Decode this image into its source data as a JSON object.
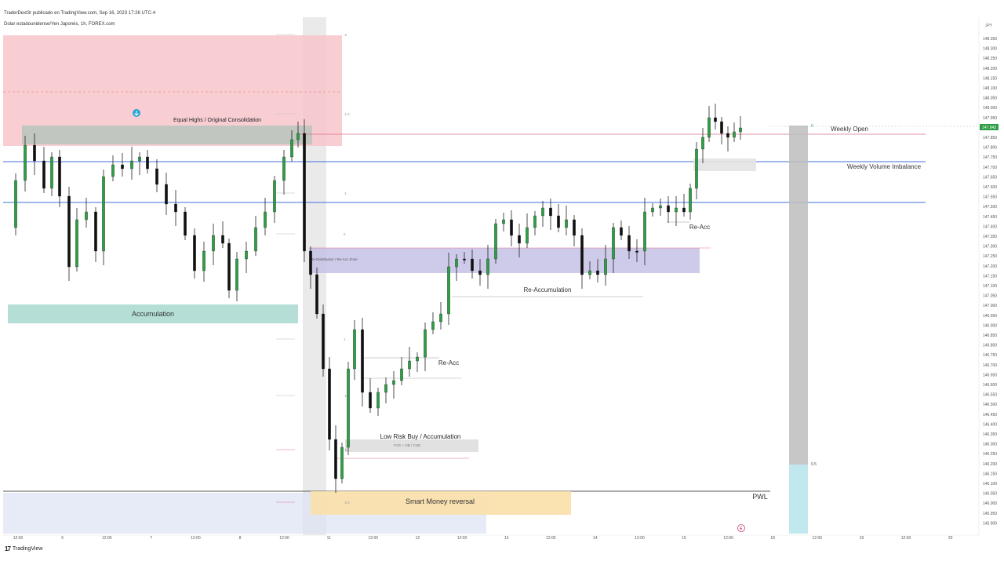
{
  "header": {
    "published": "TraderDext3r publicado en TradingView.com, Sep 16, 2023 17:26 UTC-4",
    "symbol": "Dolar estadounidense/Yen Japonés, 1h, FOREX.com"
  },
  "price_axis": {
    "currency": "JPY",
    "ticks": [
      "148.350",
      "148.300",
      "148.250",
      "148.200",
      "148.150",
      "148.100",
      "148.050",
      "148.000",
      "147.950",
      "147.900",
      "147.850",
      "147.800",
      "147.750",
      "147.700",
      "147.650",
      "147.600",
      "147.550",
      "147.500",
      "147.450",
      "147.400",
      "147.350",
      "147.300",
      "147.250",
      "147.200",
      "147.150",
      "147.100",
      "147.050",
      "147.000",
      "146.950",
      "146.900",
      "146.850",
      "146.800",
      "146.750",
      "146.700",
      "146.650",
      "146.600",
      "146.550",
      "146.500",
      "146.450",
      "146.400",
      "146.350",
      "146.300",
      "146.250",
      "146.200",
      "146.150",
      "146.100",
      "146.050",
      "146.000",
      "145.950",
      "145.900"
    ],
    "current_price": "147.843"
  },
  "time_axis": {
    "ticks": [
      "12:00",
      "6",
      "12:00",
      "7",
      "12:00",
      "8",
      "12:00",
      "11",
      "12:00",
      "12",
      "12:00",
      "13",
      "12:00",
      "14",
      "12:00",
      "15",
      "12:00",
      "18",
      "12:00",
      "19",
      "12:00",
      "20"
    ]
  },
  "zones": {
    "premium": "",
    "equal_highs": "Equal Highs / Original Consolidation",
    "accumulation": "Accumulation",
    "redistribution": "Re-Distribution / Re-Acc Zone",
    "re_accumulation": "Re-Accumulation",
    "re_acc_1": "Re-Acc",
    "re_acc_2": "Re-Acc",
    "low_risk": "Low Risk Buy / Accumulation",
    "low_risk_sub": "FVG + OB / CSD",
    "smart_money": "Smart Money reversal",
    "weekly_open": "Weekly Open",
    "weekly_volume": "Weekly Volume Imbalance",
    "pwl": "PWL"
  },
  "fib_levels": [
    "-2",
    "-1.5",
    "-1",
    "0",
    "1",
    "-1.5",
    "-2",
    "-2.5"
  ],
  "fib_right": [
    "0",
    "0.5"
  ],
  "colors": {
    "bull": "#2e9e44",
    "bear": "#111111",
    "premium_zone": "#f8c6cb",
    "equal_highs_zone": "#b8c4bd",
    "accumulation_zone": "#a8d9cf",
    "redistribution_zone": "#c6c1e6",
    "smart_money_zone": "#fbe0a8",
    "blue_line": "#3f6fd9",
    "pink_line": "#d9738c",
    "gray_bar": "#bdbdbd",
    "cyan_bar": "#b9e6ec"
  },
  "footer": {
    "brand": "TradingView"
  }
}
